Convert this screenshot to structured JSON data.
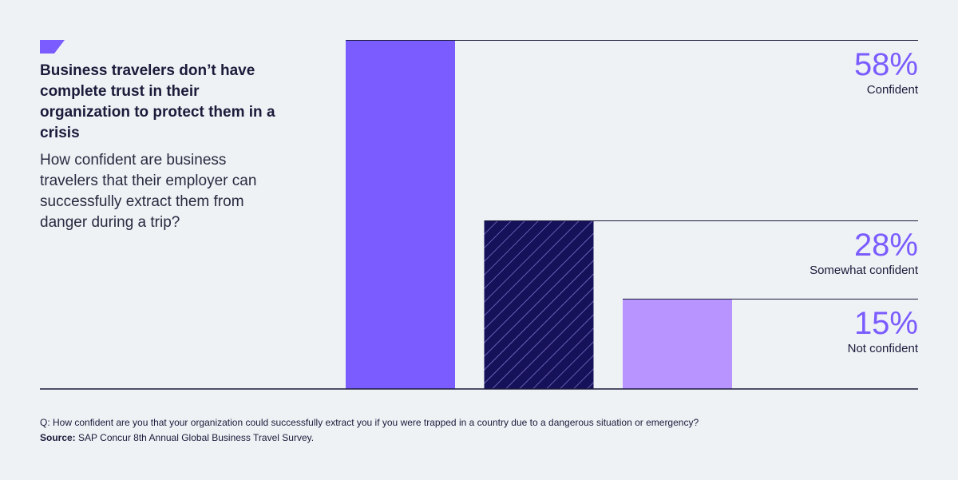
{
  "colors": {
    "background": "#EEF2F5",
    "bar_primary": "#7B5CFF",
    "bar_dark": "#15125A",
    "bar_light": "#B794FF",
    "value_text": "#7B5CFF",
    "rule": "#1B1B3A"
  },
  "header": {
    "title": "Business travelers don’t have complete trust in their organization to protect them in a crisis",
    "subtitle": "How confident are business travelers that their employer can successfully extract them from danger during a trip?"
  },
  "chart_data": {
    "type": "bar",
    "categories": [
      "Confident",
      "Somewhat confident",
      "Not confident"
    ],
    "values": [
      58,
      28,
      15
    ],
    "value_labels": [
      "58%",
      "28%",
      "15%"
    ],
    "ylim": [
      0,
      58
    ],
    "grid": false,
    "legend": "none"
  },
  "footer": {
    "question": "Q: How confident are you that your organization could successfully extract you if you were trapped in a country due to a dangerous situation or emergency?",
    "source_label": "Source:",
    "source_text": " SAP Concur 8th Annual Global Business Travel Survey."
  }
}
